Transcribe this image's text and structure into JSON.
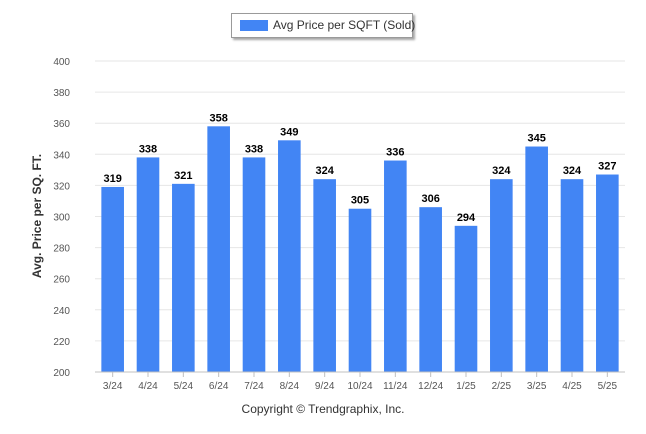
{
  "legend": {
    "label": "Avg Price per SQFT (Sold)"
  },
  "footer": {
    "copyright": "Copyright © Trendgraphix, Inc."
  },
  "colors": {
    "bar": "#4285f4",
    "grid": "#e6e6e6",
    "axis_text": "#555555",
    "label_text": "#000000"
  },
  "chart_data": {
    "type": "bar",
    "categories": [
      "3/24",
      "4/24",
      "5/24",
      "6/24",
      "7/24",
      "8/24",
      "9/24",
      "10/24",
      "11/24",
      "12/24",
      "1/25",
      "2/25",
      "3/25",
      "4/25",
      "5/25"
    ],
    "series": [
      {
        "name": "Avg Price per SQFT (Sold)",
        "values": [
          319,
          338,
          321,
          358,
          338,
          349,
          324,
          305,
          336,
          306,
          294,
          324,
          345,
          324,
          327
        ]
      }
    ],
    "ylabel": "Avg. Price per SQ. FT.",
    "xlabel": "",
    "ylim": [
      200,
      400
    ],
    "yticks": [
      200,
      220,
      240,
      260,
      280,
      300,
      320,
      340,
      360,
      380,
      400
    ],
    "grid": true,
    "data_labels": true,
    "legend_position": "top-center"
  }
}
